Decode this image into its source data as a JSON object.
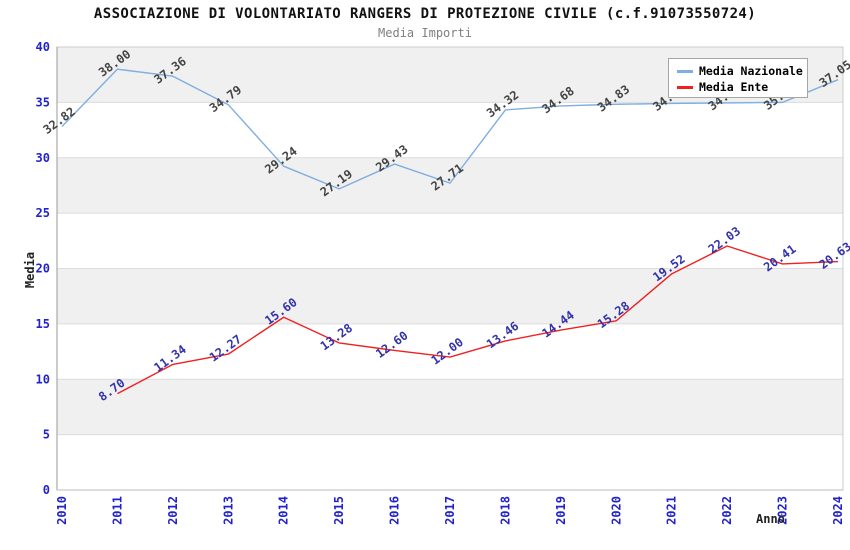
{
  "header": {
    "title": "ASSOCIAZIONE DI VOLONTARIATO RANGERS DI PROTEZIONE CIVILE (c.f.91073550724)",
    "subtitle": "Media Importi"
  },
  "legend": {
    "items": [
      {
        "label": "Media Nazionale",
        "color": "#7FAEE0"
      },
      {
        "label": "Media Ente",
        "color": "#EE2222"
      }
    ]
  },
  "axes": {
    "y_label": "Media",
    "x_label": "Anno",
    "y_ticks": [
      0,
      5,
      10,
      15,
      20,
      25,
      30,
      35,
      40
    ],
    "tick_label_color": "#2222CC"
  },
  "chart_data": {
    "type": "line",
    "title": "ASSOCIAZIONE DI VOLONTARIATO RANGERS DI PROTEZIONE CIVILE (c.f.91073550724)",
    "subtitle": "Media Importi",
    "xlabel": "Anno",
    "ylabel": "Media",
    "ylim": [
      0,
      40
    ],
    "grid": "horizontal-bands-every-5",
    "legend_position": "top-right",
    "band_colors": [
      "#F0F0F0",
      "#FFFFFF"
    ],
    "grid_color": "#DCDCDC",
    "x": [
      "2010",
      "2011",
      "2012",
      "2013",
      "2014",
      "2015",
      "2016",
      "2017",
      "2018",
      "2019",
      "2020",
      "2021",
      "2022",
      "2023",
      "2024"
    ],
    "series": [
      {
        "name": "Media Nazionale",
        "color": "#7FAEE0",
        "label_color": "#444444",
        "values": [
          32.82,
          38.0,
          37.36,
          34.79,
          29.24,
          27.19,
          29.43,
          27.71,
          34.32,
          34.68,
          34.83,
          34.9,
          34.95,
          35.0,
          37.05
        ]
      },
      {
        "name": "Media Ente",
        "color": "#EE2222",
        "label_color": "#3333AA",
        "values": [
          null,
          8.7,
          11.34,
          12.27,
          15.6,
          13.28,
          12.6,
          12.0,
          13.46,
          14.44,
          15.28,
          19.52,
          22.03,
          20.41,
          20.63
        ]
      }
    ]
  }
}
